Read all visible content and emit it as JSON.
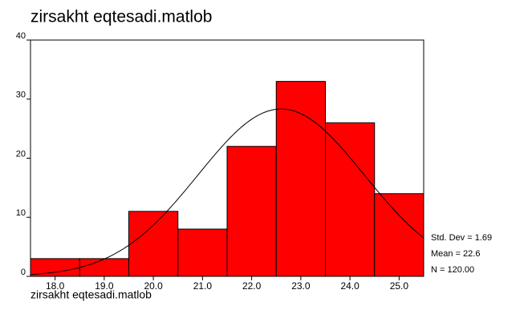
{
  "chart_data": {
    "type": "histogram",
    "title": "zirsakht eqtesadi.matlob",
    "x_label": "zirsakht eqtesadi.matlob",
    "bins": [
      17.5,
      18.5,
      19.5,
      20.5,
      21.5,
      22.5,
      23.5,
      24.5,
      25.5
    ],
    "values": [
      3,
      3,
      11,
      8,
      22,
      33,
      26,
      14
    ],
    "color": "#ff0000",
    "xlim": [
      17.5,
      25.5
    ],
    "xticks": [
      {
        "value": 18,
        "label": "18.0"
      },
      {
        "value": 19,
        "label": "19.0"
      },
      {
        "value": 20,
        "label": "20.0"
      },
      {
        "value": 21,
        "label": "21.0"
      },
      {
        "value": 22,
        "label": "22.0"
      },
      {
        "value": 23,
        "label": "23.0"
      },
      {
        "value": 24,
        "label": "24.0"
      },
      {
        "value": 25,
        "label": "25.0"
      }
    ],
    "ylim": [
      0,
      40
    ],
    "yticks": [
      0,
      10,
      20,
      30,
      40
    ],
    "std_dev": {
      "value": 1.69,
      "label": "Std. Dev = 1.69"
    },
    "mean": {
      "value": 22.6,
      "label": "Mean = 22.6"
    },
    "n": {
      "value": 120,
      "label": "N = 120.00"
    }
  }
}
